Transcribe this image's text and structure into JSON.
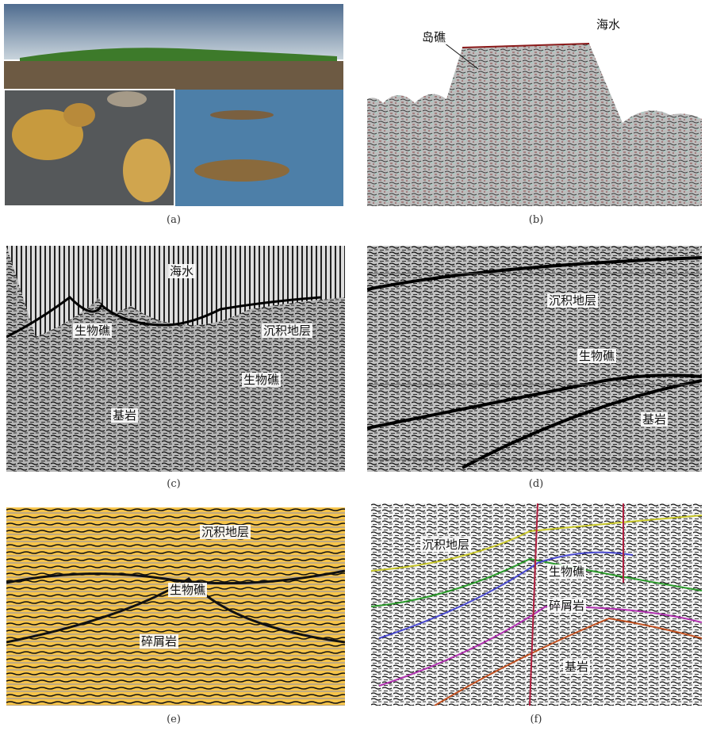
{
  "panels": [
    {
      "label": "(a)",
      "annotations": []
    },
    {
      "label": "(b)",
      "annotations": [
        "海水",
        "岛礁"
      ]
    },
    {
      "label": "(c)",
      "annotations": [
        "海水",
        "生物礁",
        "沉积地层",
        "生物礁",
        "基岩"
      ]
    },
    {
      "label": "(d)",
      "annotations": [
        "沉积地层",
        "生物礁",
        "基岩"
      ]
    },
    {
      "label": "(e)",
      "annotations": [
        "沉积地层",
        "生物礁",
        "碎屑岩"
      ]
    },
    {
      "label": "(f)",
      "annotations": [
        "沉积地层",
        "生物礁",
        "碎屑岩",
        "基岩"
      ]
    }
  ]
}
